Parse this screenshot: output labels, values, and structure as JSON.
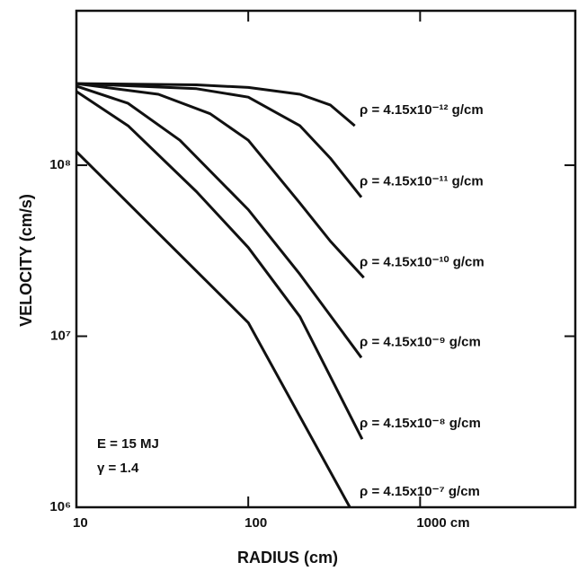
{
  "chart_data": {
    "type": "line",
    "x_label": "RADIUS (cm)",
    "y_label": "VELOCITY (cm/s)",
    "annotations": [
      "E = 15 MJ",
      "γ = 1.4"
    ],
    "log_x": true,
    "log_y": true,
    "color": "#111111",
    "xlim": [
      10,
      8000
    ],
    "ylim": [
      1000000,
      800000000
    ],
    "xticks": [
      10,
      100,
      {
        "value": 1000,
        "label": "1000 cm"
      }
    ],
    "yticks": [
      {
        "value": 1000000,
        "label": "10⁶"
      },
      {
        "value": 10000000,
        "label": "10⁷"
      },
      {
        "value": 100000000,
        "label": "10⁸"
      }
    ],
    "series": [
      {
        "name": "ρ = 4.15x10⁻¹² g/cm",
        "x": [
          10,
          50,
          100,
          200,
          300,
          417
        ],
        "values": [
          300000000,
          295000000,
          285000000,
          260000000,
          225000000,
          170000000
        ]
      },
      {
        "name": "ρ = 4.15x10⁻¹¹ g/cm",
        "x": [
          10,
          50,
          100,
          200,
          300,
          455
        ],
        "values": [
          300000000,
          280000000,
          250000000,
          170000000,
          110000000,
          65000000
        ]
      },
      {
        "name": "ρ = 4.15x10⁻¹⁰ g/cm",
        "x": [
          10,
          30,
          60,
          100,
          200,
          300,
          470
        ],
        "values": [
          300000000,
          260000000,
          200000000,
          140000000,
          60000000,
          36000000,
          22000000
        ]
      },
      {
        "name": "ρ = 4.15x10⁻⁹ g/cm",
        "x": [
          10,
          20,
          40,
          100,
          200,
          455
        ],
        "values": [
          290000000,
          230000000,
          140000000,
          55000000,
          23000000,
          7500000
        ]
      },
      {
        "name": "ρ = 4.15x10⁻⁸ g/cm",
        "x": [
          10,
          20,
          50,
          100,
          200,
          460
        ],
        "values": [
          270000000,
          170000000,
          70000000,
          33000000,
          13000000,
          2500000
        ]
      },
      {
        "name": "ρ = 4.15x10⁻⁷ g/cm",
        "x": [
          10,
          30,
          100,
          390
        ],
        "values": [
          120000000,
          40000000,
          12000000,
          1000000
        ]
      }
    ]
  }
}
